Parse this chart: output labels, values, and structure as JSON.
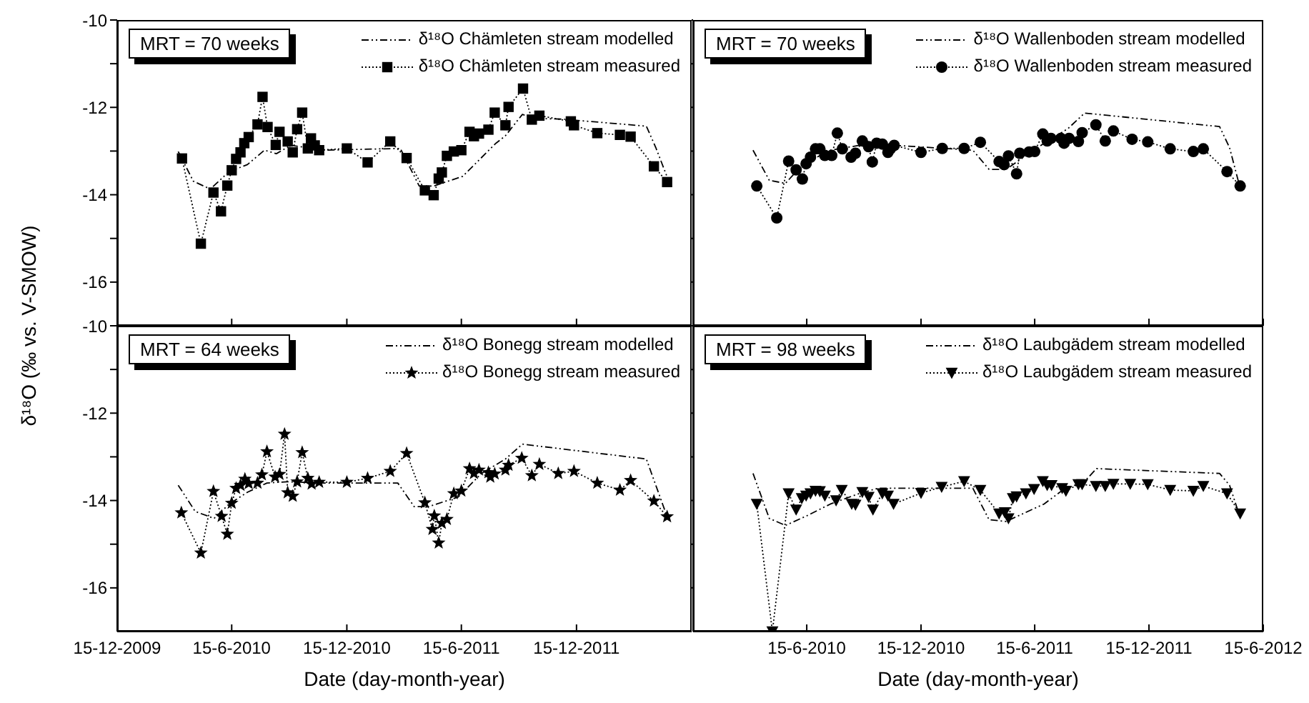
{
  "chart_data": [
    {
      "type": "line",
      "ylabel": "δ¹⁸O (‰ vs. V-SMOW)",
      "xlim": [
        "2009-12-15",
        "2012-06-15"
      ],
      "xticks": [
        {
          "value": "2009-12-15",
          "label": null
        },
        {
          "value": "2010-06-15",
          "label": null
        },
        {
          "value": "2010-12-15",
          "label": null
        },
        {
          "value": "2011-06-15",
          "label": null
        },
        {
          "value": "2011-12-15",
          "label": null
        }
      ],
      "ylim": [
        -17,
        -10
      ],
      "yticks": [
        -16,
        {
          "value": -15,
          "label": null
        },
        -14,
        {
          "value": -13,
          "label": null
        },
        -12,
        {
          "value": -11,
          "label": null
        },
        -10
      ],
      "tick_labels": "y",
      "legend": "top right",
      "annotations": [
        "MRT = 70 weeks"
      ],
      "series": [
        {
          "name": "δ¹⁸O Chämleten stream modelled",
          "color": "#000000",
          "marker": "none",
          "line_style": "dashed",
          "x": [
            "2010-03-22",
            "2010-04-15",
            "2010-05-12",
            "2010-06-11",
            "2010-07-10",
            "2010-08-06",
            "2010-08-25",
            "2010-09-17",
            "2010-11-10",
            "2011-03-10",
            "2011-04-09",
            "2011-05-02",
            "2011-06-17",
            "2011-08-09",
            "2011-08-24",
            "2011-09-20",
            "2011-10-07",
            "2011-11-23",
            "2012-04-04",
            "2012-04-19",
            "2012-05-08"
          ],
          "values": [
            -13.01,
            -13.69,
            -13.87,
            -13.47,
            -13.31,
            -12.98,
            -13.06,
            -12.87,
            -12.98,
            -12.94,
            -13.8,
            -13.8,
            -13.58,
            -12.82,
            -12.65,
            -12.16,
            -12.25,
            -12.27,
            -12.43,
            -12.92,
            -13.63
          ]
        },
        {
          "name": "δ¹⁸O Chämleten stream measured",
          "color": "#000000",
          "marker": "square",
          "line_style": "dotted",
          "x": [
            "2010-03-28",
            "2010-04-27",
            "2010-05-17",
            "2010-05-29",
            "2010-06-08",
            "2010-06-15",
            "2010-06-22",
            "2010-06-29",
            "2010-07-05",
            "2010-07-12",
            "2010-07-26",
            "2010-08-03",
            "2010-08-11",
            "2010-08-24",
            "2010-08-30",
            "2010-09-12",
            "2010-09-20",
            "2010-09-27",
            "2010-10-05",
            "2010-10-14",
            "2010-10-19",
            "2010-10-25",
            "2010-11-01",
            "2010-12-15",
            "2011-01-17",
            "2011-02-22",
            "2011-03-20",
            "2011-04-18",
            "2011-05-02",
            "2011-05-10",
            "2011-05-15",
            "2011-05-23",
            "2011-06-03",
            "2011-06-15",
            "2011-06-28",
            "2011-07-05",
            "2011-07-13",
            "2011-07-28",
            "2011-08-07",
            "2011-08-24",
            "2011-08-29",
            "2011-09-21",
            "2011-10-05",
            "2011-10-17",
            "2011-12-06",
            "2011-12-11",
            "2012-01-17",
            "2012-02-22",
            "2012-03-10",
            "2012-04-16",
            "2012-05-07"
          ],
          "values": [
            -13.17,
            -15.12,
            -13.95,
            -14.38,
            -13.79,
            -13.44,
            -13.18,
            -13.03,
            -12.82,
            -12.68,
            -12.39,
            -11.76,
            -12.45,
            -12.86,
            -12.56,
            -12.78,
            -13.03,
            -12.5,
            -12.12,
            -12.94,
            -12.71,
            -12.87,
            -12.98,
            -12.94,
            -13.26,
            -12.78,
            -13.16,
            -13.9,
            -14.01,
            -13.63,
            -13.49,
            -13.11,
            -13.01,
            -12.98,
            -12.56,
            -12.66,
            -12.6,
            -12.51,
            -12.12,
            -12.41,
            -11.99,
            -11.57,
            -12.28,
            -12.19,
            -12.32,
            -12.41,
            -12.59,
            -12.63,
            -12.67,
            -13.35,
            -13.71
          ]
        }
      ]
    },
    {
      "type": "line",
      "xlim": [
        "2009-12-15",
        "2012-06-15"
      ],
      "xticks": [
        {
          "value": "2010-06-15",
          "label": null
        },
        {
          "value": "2010-12-15",
          "label": null
        },
        {
          "value": "2011-06-15",
          "label": null
        },
        {
          "value": "2011-12-15",
          "label": null
        },
        {
          "value": "2012-06-15",
          "label": null
        }
      ],
      "ylim": [
        -17,
        -10
      ],
      "yticks": [
        {
          "value": -16,
          "label": null
        },
        {
          "value": -15,
          "label": null
        },
        {
          "value": -14,
          "label": null
        },
        {
          "value": -13,
          "label": null
        },
        {
          "value": -12,
          "label": null
        },
        {
          "value": -11,
          "label": null
        },
        {
          "value": -10,
          "label": null
        }
      ],
      "tick_labels": false,
      "legend": "top right",
      "annotations": [
        "MRT = 70 weeks"
      ],
      "series": [
        {
          "name": "δ¹⁸O Wallenboden stream modelled",
          "color": "#000000",
          "marker": "none",
          "line_style": "dashed",
          "x": [
            "2010-03-21",
            "2010-04-16",
            "2010-05-12",
            "2010-06-08",
            "2010-07-23",
            "2010-09-07",
            "2010-10-14",
            "2011-03-08",
            "2011-04-03",
            "2011-04-30",
            "2011-06-30",
            "2011-08-07",
            "2011-09-03",
            "2012-04-06",
            "2012-04-22",
            "2012-05-07"
          ],
          "values": [
            -12.98,
            -13.67,
            -13.74,
            -13.31,
            -12.98,
            -12.87,
            -12.85,
            -12.98,
            -13.42,
            -13.42,
            -12.82,
            -12.49,
            -12.13,
            -12.44,
            -12.92,
            -13.74
          ]
        },
        {
          "name": "δ¹⁸O Wallenboden stream measured",
          "color": "#000000",
          "marker": "circle",
          "line_style": "dotted",
          "x": [
            "2010-03-27",
            "2010-04-28",
            "2010-05-17",
            "2010-05-29",
            "2010-06-08",
            "2010-06-14",
            "2010-06-21",
            "2010-06-29",
            "2010-07-06",
            "2010-07-14",
            "2010-07-25",
            "2010-08-03",
            "2010-08-11",
            "2010-08-25",
            "2010-09-01",
            "2010-09-12",
            "2010-09-22",
            "2010-09-28",
            "2010-10-05",
            "2010-10-14",
            "2010-10-23",
            "2010-10-27",
            "2010-11-02",
            "2010-12-15",
            "2011-01-18",
            "2011-02-22",
            "2011-03-20",
            "2011-04-19",
            "2011-04-27",
            "2011-05-04",
            "2011-05-17",
            "2011-05-22",
            "2011-06-06",
            "2011-06-15",
            "2011-06-28",
            "2011-07-05",
            "2011-07-11",
            "2011-07-27",
            "2011-08-01",
            "2011-08-09",
            "2011-08-24",
            "2011-08-30",
            "2011-09-21",
            "2011-10-06",
            "2011-10-19",
            "2011-11-18",
            "2011-12-13",
            "2012-01-18",
            "2012-02-24",
            "2012-03-11",
            "2012-04-18",
            "2012-05-09"
          ],
          "values": [
            -13.8,
            -14.53,
            -13.23,
            -13.43,
            -13.64,
            -13.29,
            -13.14,
            -12.95,
            -12.95,
            -13.1,
            -13.1,
            -12.59,
            -12.95,
            -13.14,
            -13.05,
            -12.77,
            -12.9,
            -13.25,
            -12.82,
            -12.84,
            -13.03,
            -12.95,
            -12.87,
            -13.03,
            -12.94,
            -12.94,
            -12.8,
            -13.24,
            -13.31,
            -13.11,
            -13.52,
            -13.05,
            -13.02,
            -13.01,
            -12.61,
            -12.77,
            -12.71,
            -12.71,
            -12.82,
            -12.71,
            -12.78,
            -12.58,
            -12.4,
            -12.77,
            -12.54,
            -12.73,
            -12.79,
            -12.95,
            -13.01,
            -12.95,
            -13.47,
            -13.8
          ]
        }
      ]
    },
    {
      "type": "line",
      "xlabel": "Date (day-month-year)",
      "xlim": [
        "2009-12-15",
        "2012-06-15"
      ],
      "xticks": [
        {
          "value": "2009-12-15",
          "label": "15-12-2009"
        },
        {
          "value": "2010-06-15",
          "label": "15-6-2010"
        },
        {
          "value": "2010-12-15",
          "label": "15-12-2010"
        },
        {
          "value": "2011-06-15",
          "label": "15-6-2011"
        },
        {
          "value": "2011-12-15",
          "label": "15-12-2011"
        }
      ],
      "ylim": [
        -17,
        -10
      ],
      "yticks": [
        -16,
        {
          "value": -15,
          "label": null
        },
        -14,
        {
          "value": -13,
          "label": null
        },
        -12,
        {
          "value": -11,
          "label": null
        },
        -10
      ],
      "legend": "top right",
      "annotations": [
        "MRT = 64 weeks"
      ],
      "series": [
        {
          "name": "δ¹⁸O Bonegg stream modelled",
          "color": "#000000",
          "marker": "none",
          "line_style": "dashed",
          "x": [
            "2010-03-22",
            "2010-04-18",
            "2010-05-18",
            "2010-06-11",
            "2010-07-10",
            "2010-08-10",
            "2010-09-11",
            "2010-11-10",
            "2011-03-06",
            "2011-04-01",
            "2011-04-24",
            "2011-06-10",
            "2011-07-17",
            "2011-08-24",
            "2011-09-20",
            "2012-04-04",
            "2012-04-19",
            "2012-05-08"
          ],
          "values": [
            -13.65,
            -14.25,
            -14.41,
            -14.08,
            -13.81,
            -13.6,
            -13.57,
            -13.6,
            -13.6,
            -14.14,
            -14.14,
            -13.92,
            -13.38,
            -13.05,
            -12.71,
            -13.05,
            -13.65,
            -14.41
          ]
        },
        {
          "name": "δ¹⁸O Bonegg stream measured",
          "color": "#000000",
          "marker": "star",
          "line_style": "dotted",
          "x": [
            "2010-03-27",
            "2010-04-27",
            "2010-05-17",
            "2010-05-30",
            "2010-06-08",
            "2010-06-15",
            "2010-06-22",
            "2010-06-29",
            "2010-07-06",
            "2010-07-12",
            "2010-07-26",
            "2010-08-02",
            "2010-08-10",
            "2010-08-23",
            "2010-08-30",
            "2010-09-07",
            "2010-09-12",
            "2010-09-20",
            "2010-09-27",
            "2010-10-05",
            "2010-10-14",
            "2010-10-20",
            "2010-11-01",
            "2010-12-15",
            "2011-01-17",
            "2011-02-22",
            "2011-03-20",
            "2011-04-18",
            "2011-04-30",
            "2011-05-03",
            "2011-05-10",
            "2011-05-15",
            "2011-05-23",
            "2011-06-03",
            "2011-06-15",
            "2011-06-28",
            "2011-07-05",
            "2011-07-13",
            "2011-07-28",
            "2011-07-31",
            "2011-08-07",
            "2011-08-24",
            "2011-08-29",
            "2011-09-19",
            "2011-10-05",
            "2011-10-17",
            "2011-11-16",
            "2011-12-11",
            "2012-01-17",
            "2012-02-22",
            "2012-03-10",
            "2012-04-16",
            "2012-05-07"
          ],
          "values": [
            -14.28,
            -15.2,
            -13.79,
            -14.36,
            -14.77,
            -14.06,
            -13.72,
            -13.65,
            -13.51,
            -13.61,
            -13.6,
            -13.41,
            -12.88,
            -13.46,
            -13.4,
            -12.48,
            -13.82,
            -13.9,
            -13.57,
            -12.9,
            -13.49,
            -13.62,
            -13.58,
            -13.58,
            -13.49,
            -13.33,
            -12.92,
            -14.05,
            -14.66,
            -14.35,
            -14.97,
            -14.52,
            -14.43,
            -13.84,
            -13.78,
            -13.27,
            -13.38,
            -13.3,
            -13.36,
            -13.46,
            -13.39,
            -13.3,
            -13.19,
            -13.03,
            -13.43,
            -13.17,
            -13.38,
            -13.33,
            -13.6,
            -13.76,
            -13.54,
            -14.01,
            -14.37
          ]
        }
      ]
    },
    {
      "type": "line",
      "xlabel": "Date (day-month-year)",
      "xlim": [
        "2009-12-15",
        "2012-06-15"
      ],
      "xticks": [
        {
          "value": "2010-06-15",
          "label": "15-6-2010"
        },
        {
          "value": "2010-12-15",
          "label": "15-12-2010"
        },
        {
          "value": "2011-06-15",
          "label": "15-6-2011"
        },
        {
          "value": "2011-12-15",
          "label": "15-12-2011"
        },
        {
          "value": "2012-06-15",
          "label": "15-6-2012"
        }
      ],
      "ylim": [
        -17,
        -10
      ],
      "yticks": [
        {
          "value": -16,
          "label": null
        },
        {
          "value": -15,
          "label": null
        },
        {
          "value": -14,
          "label": null
        },
        {
          "value": -13,
          "label": null
        },
        {
          "value": -12,
          "label": null
        },
        {
          "value": -11,
          "label": null
        },
        {
          "value": -10,
          "label": null
        }
      ],
      "tick_labels": "x",
      "legend": "top right",
      "annotations": [
        "MRT = 98 weeks"
      ],
      "series": [
        {
          "name": "δ¹⁸O Laubgädem stream modelled",
          "color": "#000000",
          "marker": "none",
          "line_style": "dashed",
          "x": [
            "2010-03-21",
            "2010-04-16",
            "2010-05-12",
            "2010-06-15",
            "2010-07-23",
            "2010-09-07",
            "2010-10-07",
            "2011-03-08",
            "2011-04-03",
            "2011-04-30",
            "2011-06-30",
            "2011-07-30",
            "2011-09-03",
            "2011-09-22",
            "2012-04-06",
            "2012-04-22",
            "2012-05-07"
          ],
          "values": [
            -13.38,
            -14.41,
            -14.57,
            -14.35,
            -14.08,
            -13.84,
            -13.72,
            -13.72,
            -14.44,
            -14.48,
            -14.08,
            -13.76,
            -13.56,
            -13.27,
            -13.38,
            -13.65,
            -14.3
          ]
        },
        {
          "name": "δ¹⁸O Laubgädem stream measured",
          "color": "#000000",
          "marker": "triangle",
          "line_style": "dotted",
          "x": [
            "2010-03-27",
            "2010-04-21",
            "2010-05-17",
            "2010-05-29",
            "2010-06-07",
            "2010-06-14",
            "2010-06-21",
            "2010-06-29",
            "2010-07-06",
            "2010-07-14",
            "2010-08-01",
            "2010-08-10",
            "2010-08-26",
            "2010-09-01",
            "2010-09-12",
            "2010-09-22",
            "2010-09-29",
            "2010-10-14",
            "2010-10-23",
            "2010-11-01",
            "2010-12-15",
            "2011-01-17",
            "2011-02-22",
            "2011-03-20",
            "2011-04-19",
            "2011-04-28",
            "2011-05-04",
            "2011-05-11",
            "2011-05-17",
            "2011-06-01",
            "2011-06-14",
            "2011-06-28",
            "2011-07-05",
            "2011-07-12",
            "2011-07-29",
            "2011-08-04",
            "2011-08-24",
            "2011-08-30",
            "2011-09-21",
            "2011-10-06",
            "2011-10-19",
            "2011-11-15",
            "2011-12-13",
            "2012-01-18",
            "2012-02-24",
            "2012-03-11",
            "2012-04-18",
            "2012-05-09"
          ],
          "values": [
            -14.08,
            -17,
            -13.84,
            -14.21,
            -13.95,
            -13.89,
            -13.84,
            -13.78,
            -13.79,
            -13.89,
            -14.0,
            -13.76,
            -14.08,
            -14.1,
            -13.81,
            -13.92,
            -14.21,
            -13.84,
            -13.89,
            -14.08,
            -13.83,
            -13.69,
            -13.56,
            -13.76,
            -14.3,
            -14.27,
            -14.41,
            -13.95,
            -13.91,
            -13.84,
            -13.74,
            -13.56,
            -13.65,
            -13.65,
            -13.72,
            -13.78,
            -13.63,
            -13.63,
            -13.67,
            -13.67,
            -13.62,
            -13.62,
            -13.63,
            -13.76,
            -13.78,
            -13.67,
            -13.84,
            -14.3
          ]
        }
      ]
    }
  ]
}
